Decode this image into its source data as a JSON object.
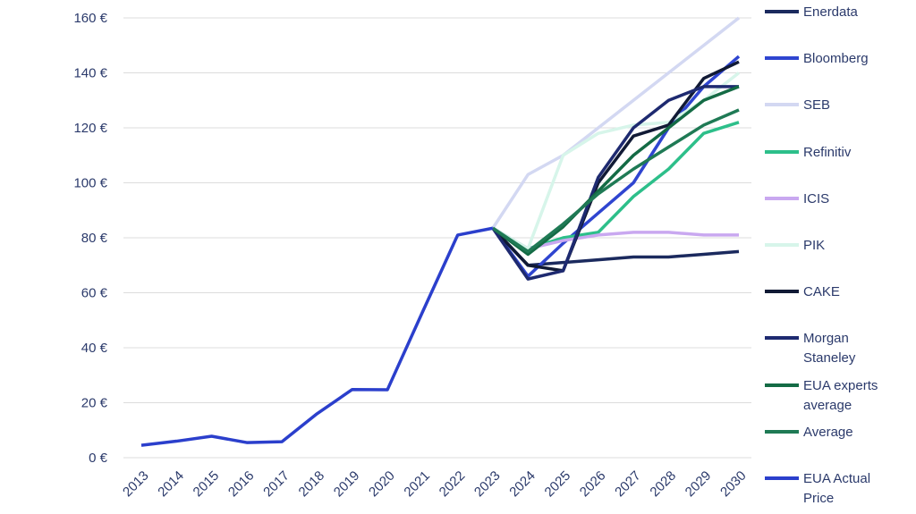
{
  "chart_data": {
    "type": "line",
    "categories": [
      "2013",
      "2014",
      "2015",
      "2016",
      "2017",
      "2018",
      "2019",
      "2020",
      "2021",
      "2022",
      "2023",
      "2024",
      "2025",
      "2026",
      "2027",
      "2028",
      "2029",
      "2030"
    ],
    "ylim": [
      0,
      160
    ],
    "yticks": [
      {
        "value": 0,
        "label": "0 €"
      },
      {
        "value": 20,
        "label": "20 €"
      },
      {
        "value": 40,
        "label": "40 €"
      },
      {
        "value": 60,
        "label": "60 €"
      },
      {
        "value": 80,
        "label": "80 €"
      },
      {
        "value": 100,
        "label": "100 €"
      },
      {
        "value": 120,
        "label": "120 €"
      },
      {
        "value": 140,
        "label": "140 €"
      },
      {
        "value": 160,
        "label": "160 €"
      }
    ],
    "grid": true,
    "series": [
      {
        "name": "Enerdata",
        "color": "#1b2a5e",
        "values": [
          null,
          null,
          null,
          null,
          null,
          null,
          null,
          null,
          null,
          null,
          83.5,
          70,
          71,
          72,
          73,
          73,
          74,
          75
        ]
      },
      {
        "name": "Bloomberg",
        "color": "#2f45d0",
        "values": [
          null,
          null,
          null,
          null,
          null,
          null,
          null,
          null,
          null,
          null,
          83.5,
          66,
          78,
          89,
          100,
          120,
          135,
          146
        ]
      },
      {
        "name": "SEB",
        "color": "#d3d8f2",
        "values": [
          null,
          null,
          null,
          null,
          null,
          null,
          null,
          null,
          null,
          null,
          83.5,
          103,
          110,
          120,
          130,
          140,
          150,
          160
        ]
      },
      {
        "name": "Refinitiv",
        "color": "#2dbf8a",
        "values": [
          null,
          null,
          null,
          null,
          null,
          null,
          null,
          null,
          null,
          null,
          83.5,
          76,
          80,
          82,
          95,
          105,
          118,
          122
        ]
      },
      {
        "name": "ICIS",
        "color": "#c9a8f0",
        "values": [
          null,
          null,
          null,
          null,
          null,
          null,
          null,
          null,
          null,
          null,
          83.5,
          76,
          79,
          81,
          82,
          82,
          81,
          81
        ]
      },
      {
        "name": "PIK",
        "color": "#d7f5ea",
        "values": [
          null,
          null,
          null,
          null,
          null,
          null,
          null,
          null,
          null,
          null,
          83.5,
          76,
          110,
          118,
          121,
          122,
          130,
          140
        ]
      },
      {
        "name": "CAKE",
        "color": "#111a35",
        "values": [
          null,
          null,
          null,
          null,
          null,
          null,
          null,
          null,
          null,
          null,
          83.5,
          70,
          68,
          100,
          117,
          121,
          138,
          144
        ]
      },
      {
        "name": "Morgan Staneley",
        "color": "#1e2a70",
        "values": [
          null,
          null,
          null,
          null,
          null,
          null,
          null,
          null,
          null,
          null,
          83.5,
          65,
          68,
          102,
          120,
          130,
          135,
          135
        ]
      },
      {
        "name": "EUA experts average",
        "color": "#146b45",
        "values": [
          null,
          null,
          null,
          null,
          null,
          null,
          null,
          null,
          null,
          null,
          83.5,
          74,
          84,
          97,
          110,
          120,
          130,
          135
        ]
      },
      {
        "name": "Average",
        "color": "#1f7a55",
        "values": [
          null,
          null,
          null,
          null,
          null,
          null,
          null,
          null,
          null,
          null,
          83.5,
          75,
          85,
          96,
          105,
          113,
          121,
          126.5
        ]
      },
      {
        "name": "EUA Actual Price",
        "color": "#2b3fcc",
        "values": [
          4.5,
          6,
          7.8,
          5.5,
          5.8,
          16,
          24.8,
          24.7,
          53,
          81,
          83.5,
          null,
          null,
          null,
          null,
          null,
          null,
          null
        ]
      }
    ]
  }
}
